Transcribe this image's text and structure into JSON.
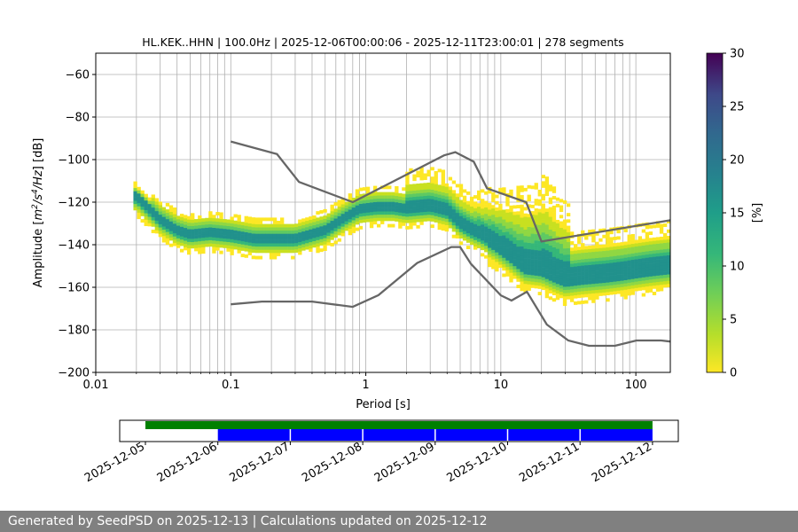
{
  "chart_data": {
    "type": "heatmap",
    "title": "HL.KEK..HHN | 100.0Hz | 2025-12-06T00:00:06 - 2025-12-11T23:00:01 | 278 segments",
    "xlabel": "Period [s]",
    "ylabel_parts": [
      "Amplitude [",
      "m",
      "2",
      "/",
      "s",
      "4",
      "/",
      "Hz",
      "] [dB]"
    ],
    "xscale": "log",
    "xlim": [
      0.01,
      180
    ],
    "ylim": [
      -200,
      -50
    ],
    "xticks": [
      0.01,
      0.1,
      1,
      10,
      100
    ],
    "xtick_labels": [
      "0.01",
      "0.1",
      "1",
      "10",
      "100"
    ],
    "yticks": [
      -200,
      -180,
      -160,
      -140,
      -120,
      -100,
      -80,
      -60
    ],
    "ytick_labels": [
      "−200",
      "−180",
      "−160",
      "−140",
      "−120",
      "−100",
      "−80",
      "−60"
    ],
    "grid": true,
    "colorbar": {
      "label": "[%]",
      "range": [
        0,
        30
      ],
      "ticks": [
        0,
        5,
        10,
        15,
        20,
        25,
        30
      ],
      "tick_labels": [
        "0",
        "5",
        "10",
        "15",
        "20",
        "25",
        "30"
      ],
      "colormap": "viridis"
    },
    "mode_curve": {
      "periods": [
        0.02,
        0.025,
        0.03,
        0.04,
        0.05,
        0.07,
        0.1,
        0.15,
        0.2,
        0.3,
        0.5,
        0.7,
        0.9,
        1.2,
        1.6,
        2,
        3,
        4,
        5,
        6,
        7,
        9,
        12,
        15,
        20,
        25,
        30,
        40,
        60,
        80,
        100,
        130,
        180
      ],
      "values": [
        -117,
        -123,
        -128,
        -133,
        -135,
        -134,
        -135,
        -137,
        -137,
        -137,
        -133,
        -127,
        -123,
        -122,
        -122,
        -123,
        -122,
        -124,
        -130,
        -133,
        -135,
        -139,
        -145,
        -150,
        -151,
        -154,
        -156,
        -155,
        -154,
        -153,
        -152,
        -151,
        -150
      ]
    },
    "high_noise_model": {
      "periods": [
        0.1,
        0.22,
        0.32,
        0.8,
        3.8,
        4.6,
        6.3,
        7.9,
        15.4,
        20,
        180
      ],
      "values": [
        -91.5,
        -97.4,
        -110.5,
        -120,
        -98,
        -96.5,
        -101,
        -113.5,
        -120,
        -138.5,
        -128.5
      ]
    },
    "low_noise_model": {
      "periods": [
        0.1,
        0.17,
        0.4,
        0.8,
        1.24,
        2.4,
        4.3,
        5,
        6,
        10,
        12,
        15.6,
        21.9,
        31.6,
        45,
        70,
        101,
        154,
        180
      ],
      "values": [
        -168,
        -166.7,
        -166.7,
        -169.2,
        -163.7,
        -148.6,
        -141.1,
        -141.1,
        -149,
        -163.8,
        -166.2,
        -162.1,
        -177.5,
        -185,
        -187.5,
        -187.5,
        -185,
        -185,
        -185.5
      ]
    },
    "availability": {
      "date_labels": [
        "2025-12-05",
        "2025-12-06",
        "2025-12-07",
        "2025-12-08",
        "2025-12-09",
        "2025-12-10",
        "2025-12-11",
        "2025-12-12"
      ],
      "data_span": [
        "2025-12-05",
        "2025-12-12"
      ],
      "used_span": [
        "2025-12-06",
        "2025-12-12"
      ],
      "data_color": "#008000",
      "used_color": "#0000ff"
    }
  },
  "footer": {
    "text": "Generated by SeedPSD on 2025-12-13 | Calculations updated on 2025-12-12"
  }
}
